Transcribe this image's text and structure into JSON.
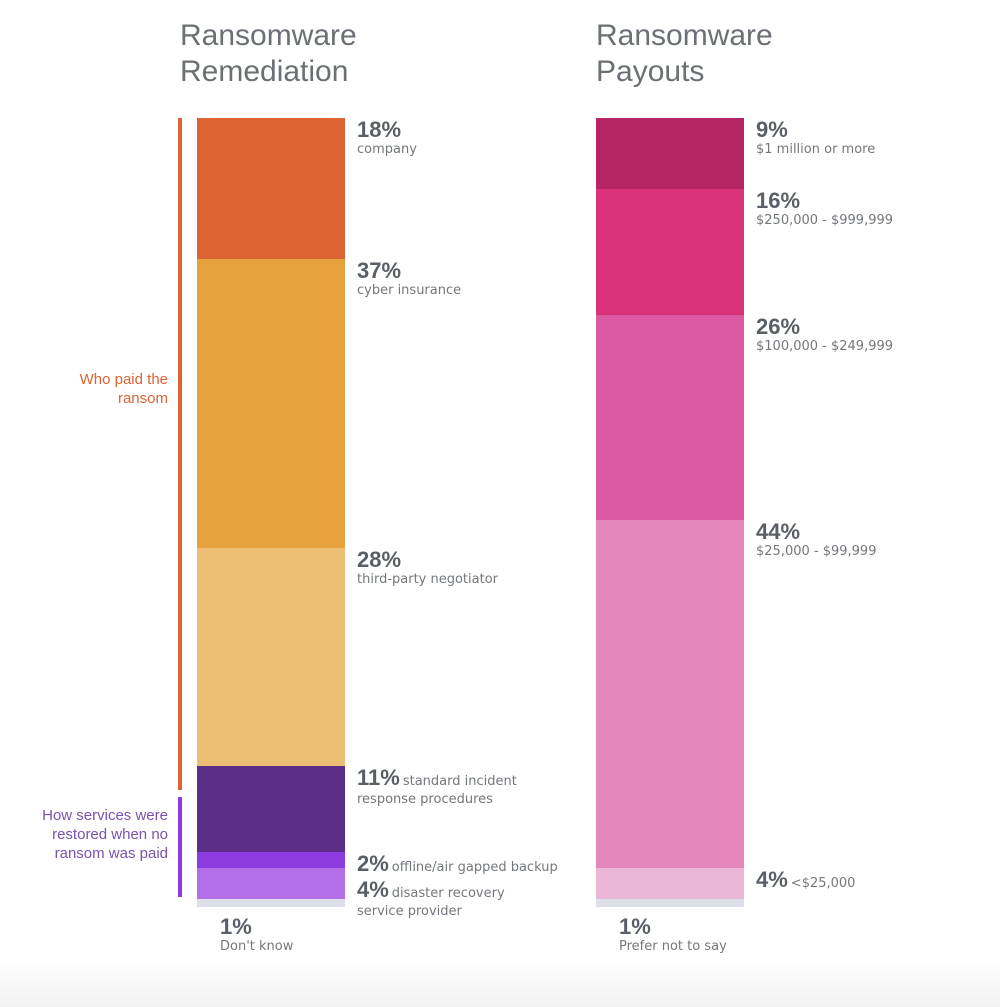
{
  "chart_data": [
    {
      "type": "bar",
      "stacked": true,
      "title": "Ransomware Remediation",
      "groups": [
        {
          "label": "Who paid the ransom",
          "color": "#dc6433"
        },
        {
          "label": "How services were restored when no ransom was paid",
          "color": "#8b3be0"
        }
      ],
      "segments": [
        {
          "value": 18,
          "pct": "18%",
          "label": "company",
          "color": "#dc6433",
          "group": 0,
          "style": "block"
        },
        {
          "value": 37,
          "pct": "37%",
          "label": "cyber insurance",
          "color": "#e5a23d",
          "group": 0,
          "style": "block"
        },
        {
          "value": 28,
          "pct": "28%",
          "label": "third-party negotiator",
          "color": "#ecbf74",
          "group": 0,
          "style": "block"
        },
        {
          "value": 11,
          "pct": "11%",
          "label": "standard incident response procedures",
          "color": "#5b2d86",
          "group": 1,
          "style": "inline"
        },
        {
          "value": 2,
          "pct": "2%",
          "label": "offline/air gapped backup",
          "color": "#8b3be0",
          "group": 1,
          "style": "inline"
        },
        {
          "value": 4,
          "pct": "4%",
          "label": "disaster recovery service provider",
          "color": "#b36ee8",
          "group": 1,
          "style": "inline"
        },
        {
          "value": 1,
          "pct": "1%",
          "label": "Don't know",
          "color": "#dde0e8",
          "style": "below"
        }
      ]
    },
    {
      "type": "bar",
      "stacked": true,
      "title": "Ransomware Payouts",
      "segments": [
        {
          "value": 9,
          "pct": "9%",
          "label": "$1 million or more",
          "color": "#b52563",
          "style": "block"
        },
        {
          "value": 16,
          "pct": "16%",
          "label": "$250,000 - $999,999",
          "color": "#d9327a",
          "style": "block"
        },
        {
          "value": 26,
          "pct": "26%",
          "label": "$100,000 - $249,999",
          "color": "#dc5aa2",
          "style": "block"
        },
        {
          "value": 44,
          "pct": "44%",
          "label": "$25,000 - $99,999",
          "color": "#e286bb",
          "style": "block"
        },
        {
          "value": 4,
          "pct": "4%",
          "label": "<$25,000",
          "color": "#ebb7d8",
          "style": "inline"
        },
        {
          "value": 1,
          "pct": "1%",
          "label": "Prefer not to say",
          "color": "#dde0e8",
          "style": "below"
        }
      ]
    }
  ]
}
